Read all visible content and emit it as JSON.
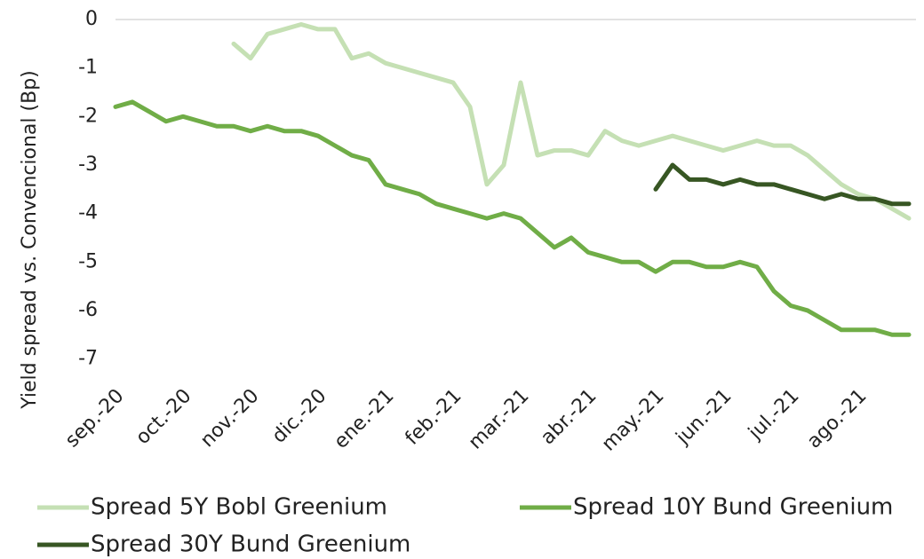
{
  "chart_data": {
    "type": "line",
    "y_axis_label": "Yield spread vs. Convencional (Bp)",
    "x": [
      "sep.-20",
      null,
      null,
      null,
      "oct.-20",
      null,
      null,
      null,
      "nov.-20",
      null,
      null,
      null,
      "dic.-20",
      null,
      null,
      null,
      "ene.-21",
      null,
      null,
      null,
      "feb.-21",
      null,
      null,
      null,
      "mar.-21",
      null,
      null,
      null,
      "abr.-21",
      null,
      null,
      null,
      "may.-21",
      null,
      null,
      null,
      "jun.-21",
      null,
      null,
      null,
      "jul.-21",
      null,
      null,
      null,
      "ago.-21",
      null,
      null,
      null
    ],
    "series": [
      {
        "name": "Spread 5Y Bobl Greenium",
        "color": "#c5e0b4",
        "values": [
          null,
          null,
          null,
          null,
          null,
          null,
          null,
          -0.5,
          -0.8,
          -0.3,
          -0.2,
          -0.1,
          -0.2,
          -0.2,
          -0.8,
          -0.7,
          -0.9,
          -1.0,
          -1.1,
          -1.2,
          -1.3,
          -1.8,
          -3.4,
          -3.0,
          -1.3,
          -2.8,
          -2.7,
          -2.7,
          -2.8,
          -2.3,
          -2.5,
          -2.6,
          -2.5,
          -2.4,
          -2.5,
          -2.6,
          -2.7,
          -2.6,
          -2.5,
          -2.6,
          -2.6,
          -2.8,
          -3.1,
          -3.4,
          -3.6,
          -3.7,
          -3.9,
          -4.1
        ]
      },
      {
        "name": "Spread 10Y Bund Greenium",
        "color": "#70ad47",
        "values": [
          -1.8,
          -1.7,
          -1.9,
          -2.1,
          -2.0,
          -2.1,
          -2.2,
          -2.2,
          -2.3,
          -2.2,
          -2.3,
          -2.3,
          -2.4,
          -2.6,
          -2.8,
          -2.9,
          -3.4,
          -3.5,
          -3.6,
          -3.8,
          -3.9,
          -4.0,
          -4.1,
          -4.0,
          -4.1,
          -4.4,
          -4.7,
          -4.5,
          -4.8,
          -4.9,
          -5.0,
          -5.0,
          -5.2,
          -5.0,
          -5.0,
          -5.1,
          -5.1,
          -5.0,
          -5.1,
          -5.6,
          -5.9,
          -6.0,
          -6.2,
          -6.4,
          -6.4,
          -6.4,
          -6.5,
          -6.5
        ]
      },
      {
        "name": "Spread 30Y Bund Greenium",
        "color": "#375623",
        "values": [
          null,
          null,
          null,
          null,
          null,
          null,
          null,
          null,
          null,
          null,
          null,
          null,
          null,
          null,
          null,
          null,
          null,
          null,
          null,
          null,
          null,
          null,
          null,
          null,
          null,
          null,
          null,
          null,
          null,
          null,
          null,
          null,
          -3.5,
          -3.0,
          -3.3,
          -3.3,
          -3.4,
          -3.3,
          -3.4,
          -3.4,
          -3.5,
          -3.6,
          -3.7,
          -3.6,
          -3.7,
          -3.7,
          -3.8,
          -3.8
        ]
      }
    ],
    "ylim": [
      -7.3,
      0
    ],
    "yticks": [
      0,
      -1,
      -2,
      -3,
      -4,
      -5,
      -6,
      -7
    ],
    "grid": false
  }
}
